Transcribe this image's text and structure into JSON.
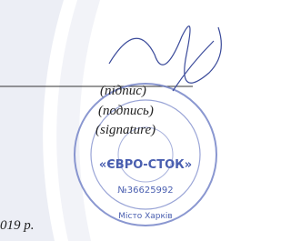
{
  "captions": [
    "(підпис)",
    "(подпись)",
    "(signature)"
  ],
  "date": "019 р.",
  "stamp": {
    "company": "«ЄВРО-СТОК»",
    "code": "№36625992",
    "city": "Місто Харків"
  }
}
